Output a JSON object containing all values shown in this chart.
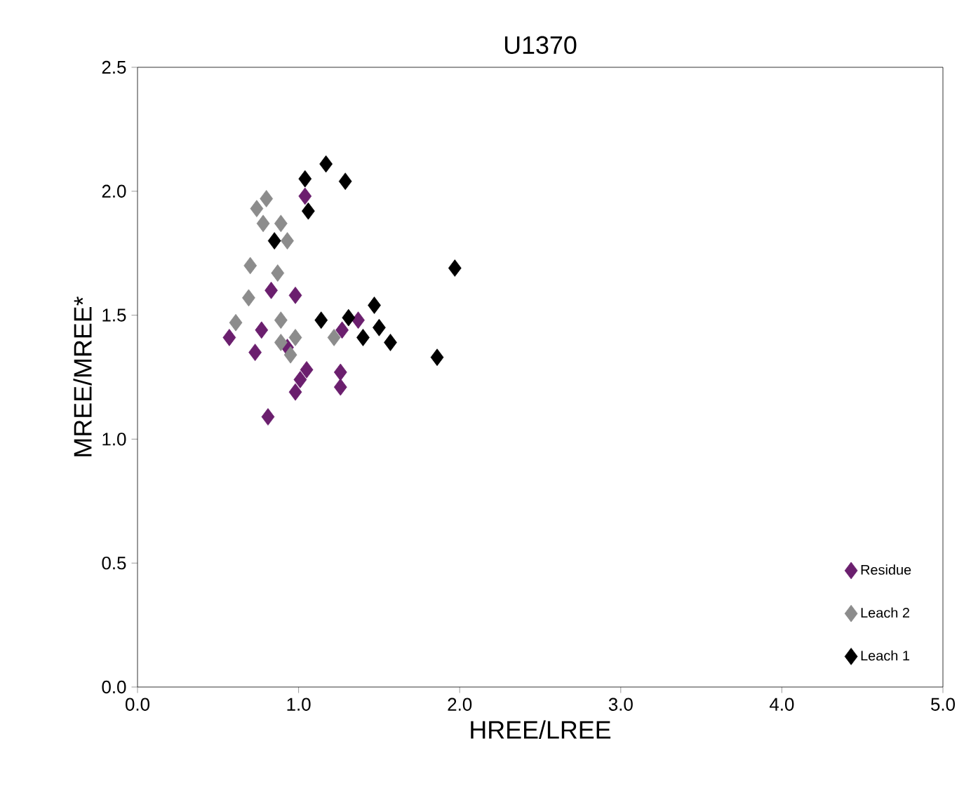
{
  "chart_data": {
    "type": "scatter",
    "title": "U1370",
    "xlabel": "HREE/LREE",
    "ylabel": "MREE/MREE*",
    "xlim": [
      0,
      5
    ],
    "ylim": [
      0,
      2.5
    ],
    "xticks": [
      {
        "value": 0,
        "label": "0.0"
      },
      {
        "value": 1,
        "label": "1.0"
      },
      {
        "value": 2,
        "label": "2.0"
      },
      {
        "value": 3,
        "label": "3.0"
      },
      {
        "value": 4,
        "label": "4.0"
      },
      {
        "value": 5,
        "label": "5.0"
      }
    ],
    "yticks": [
      {
        "value": 0,
        "label": "0.0"
      },
      {
        "value": 0.5,
        "label": "0.5"
      },
      {
        "value": 1,
        "label": "1.0"
      },
      {
        "value": 1.5,
        "label": "1.5"
      },
      {
        "value": 2,
        "label": "2.0"
      },
      {
        "value": 2.5,
        "label": "2.5"
      }
    ],
    "grid": false,
    "legend": "bottom right",
    "marker": "diamond",
    "series": [
      {
        "name": "Residue",
        "color": "#6b1f6e",
        "x": [
          1.04,
          0.83,
          0.98,
          0.57,
          0.77,
          0.73,
          0.95,
          1.05,
          1.01,
          0.98,
          1.26,
          1.26,
          0.81,
          0.93,
          1.27,
          1.37
        ],
        "values": [
          1.98,
          1.6,
          1.58,
          1.41,
          1.44,
          1.35,
          null,
          1.28,
          1.24,
          1.19,
          1.27,
          1.21,
          1.09,
          1.37,
          1.44,
          1.48
        ]
      },
      {
        "name": "Leach 2",
        "color": "#8c8c8c",
        "x": [
          0.74,
          0.8,
          0.78,
          0.89,
          0.93,
          0.7,
          0.87,
          0.69,
          0.61,
          0.89,
          0.89,
          0.98,
          1.22,
          0.95
        ],
        "values": [
          1.93,
          1.97,
          1.87,
          1.87,
          1.8,
          1.7,
          1.67,
          1.57,
          1.47,
          1.48,
          1.39,
          1.41,
          1.41,
          1.34
        ]
      },
      {
        "name": "Leach 1",
        "color": "#000000",
        "x": [
          1.04,
          1.17,
          1.29,
          1.06,
          0.85,
          1.97,
          1.14,
          1.31,
          1.47,
          1.5,
          1.4,
          1.57,
          1.86
        ],
        "values": [
          2.05,
          2.11,
          2.04,
          1.92,
          1.8,
          1.69,
          1.48,
          1.49,
          1.54,
          1.45,
          1.41,
          1.39,
          1.33
        ]
      }
    ]
  }
}
